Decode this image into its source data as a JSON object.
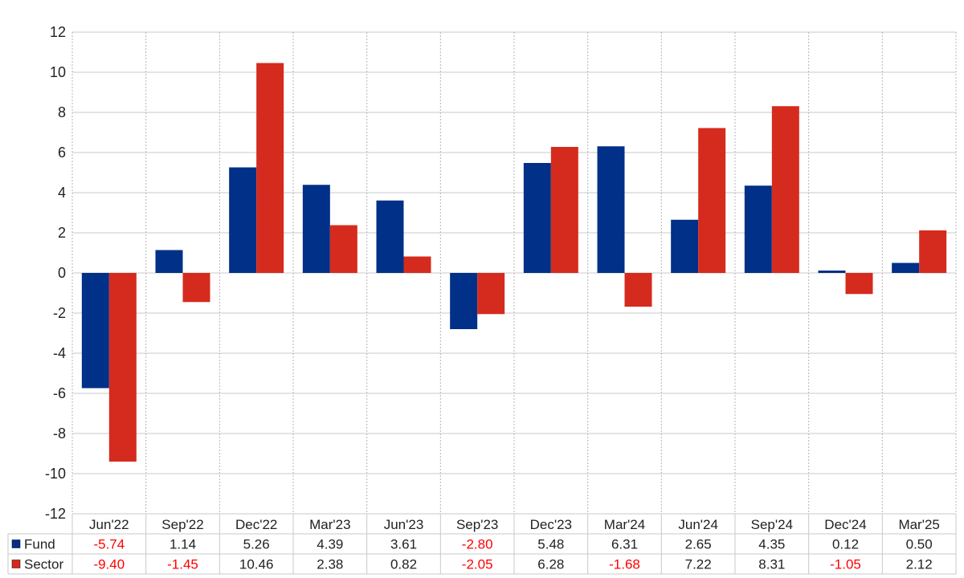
{
  "chart_data": {
    "type": "bar",
    "categories": [
      "Jun'22",
      "Sep'22",
      "Dec'22",
      "Mar'23",
      "Jun'23",
      "Sep'23",
      "Dec'23",
      "Mar'24",
      "Jun'24",
      "Sep'24",
      "Dec'24",
      "Mar'25"
    ],
    "series": [
      {
        "name": "Fund",
        "color": "#003087",
        "values": [
          -5.74,
          1.14,
          5.26,
          4.39,
          3.61,
          -2.8,
          5.48,
          6.31,
          2.65,
          4.35,
          0.12,
          0.5
        ]
      },
      {
        "name": "Sector",
        "color": "#d52b1e",
        "values": [
          -9.4,
          -1.45,
          10.46,
          2.38,
          0.82,
          -2.05,
          6.28,
          -1.68,
          7.22,
          8.31,
          -1.05,
          2.12
        ]
      }
    ],
    "ylim": [
      -12,
      12
    ],
    "yticks": [
      12,
      10,
      8,
      6,
      4,
      2,
      0,
      -2,
      -4,
      -6,
      -8,
      -10,
      -12
    ],
    "grid": true,
    "legend": "data-table-bottom",
    "negative_value_color": "#ff0000",
    "positive_value_color": "#222222"
  }
}
